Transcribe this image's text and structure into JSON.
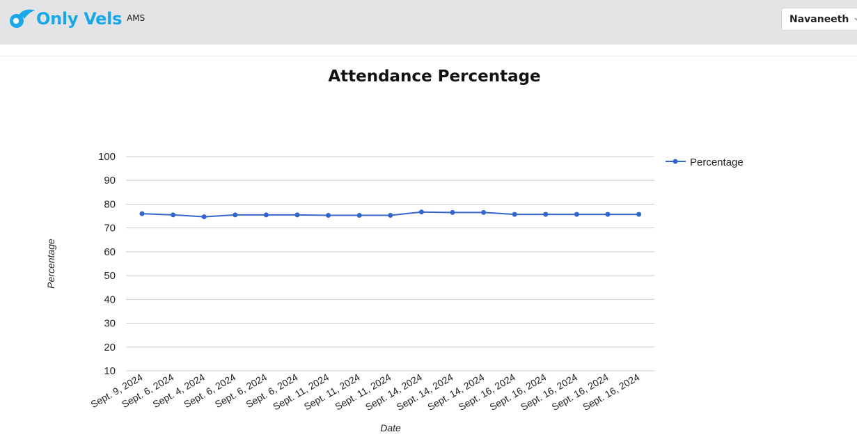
{
  "header": {
    "brand": "Only Vels",
    "sub_brand": "AMS",
    "user": "Navaneeth",
    "icons": {
      "logo": "bird-logo-icon",
      "dropdown": "chevron-down-icon"
    }
  },
  "colors": {
    "brand": "#1aa7e8",
    "series": "#3366cc",
    "grid": "#cccccc",
    "header_bg": "#e4e4e6"
  },
  "chart_data": {
    "type": "line",
    "title": "Attendance Percentage",
    "xlabel": "Date",
    "ylabel": "Percentage",
    "ylim": [
      10,
      100
    ],
    "yticks": [
      10,
      20,
      30,
      40,
      50,
      60,
      70,
      80,
      90,
      100
    ],
    "grid": true,
    "legend_position": "right",
    "categories": [
      "Sept. 9, 2024",
      "Sept. 6, 2024",
      "Sept. 4, 2024",
      "Sept. 6, 2024",
      "Sept. 6, 2024",
      "Sept. 6, 2024",
      "Sept. 11, 2024",
      "Sept. 11, 2024",
      "Sept. 11, 2024",
      "Sept. 14, 2024",
      "Sept. 14, 2024",
      "Sept. 14, 2024",
      "Sept. 16, 2024",
      "Sept. 16, 2024",
      "Sept. 16, 2024",
      "Sept. 16, 2024",
      "Sept. 16, 2024"
    ],
    "series": [
      {
        "name": "Percentage",
        "values": [
          76,
          75.5,
          74.7,
          75.5,
          75.5,
          75.5,
          75.3,
          75.3,
          75.3,
          76.7,
          76.5,
          76.5,
          75.7,
          75.7,
          75.7,
          75.7,
          75.7
        ]
      }
    ]
  }
}
